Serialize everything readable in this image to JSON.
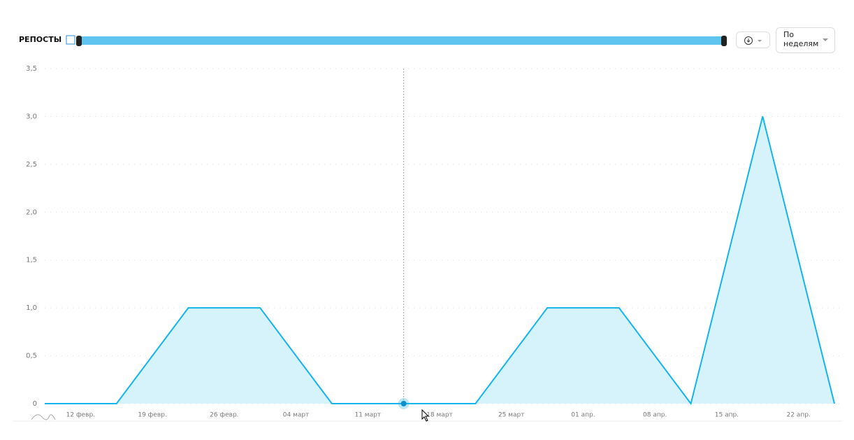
{
  "header": {
    "title": "РЕПОСТЫ",
    "period_button": "По неделям"
  },
  "chart_data": {
    "type": "area",
    "categories": [
      "12 февр.",
      "19 февр.",
      "26 февр.",
      "04 март",
      "11 март",
      "18 март",
      "25 март",
      "01 апр.",
      "08 апр.",
      "15 апр.",
      "22 апр.",
      null
    ],
    "series": [
      {
        "name": "РЕПОСТЫ",
        "color": "#13b4ea",
        "values": [
          0,
          0,
          1,
          1,
          0,
          0,
          0,
          1,
          1,
          0,
          3,
          0
        ]
      }
    ],
    "ylim": [
      0,
      3.5
    ],
    "yticks": [
      0,
      {
        "value": 0.5,
        "label": "0,5"
      },
      {
        "value": 1,
        "label": "1,0"
      },
      {
        "value": 1.5,
        "label": "1,5"
      },
      {
        "value": 2,
        "label": "2,0"
      },
      {
        "value": 2.5,
        "label": "2,5"
      },
      {
        "value": 3,
        "label": "3,0"
      },
      {
        "value": 3.5,
        "label": "3,5"
      }
    ],
    "grid": true
  }
}
